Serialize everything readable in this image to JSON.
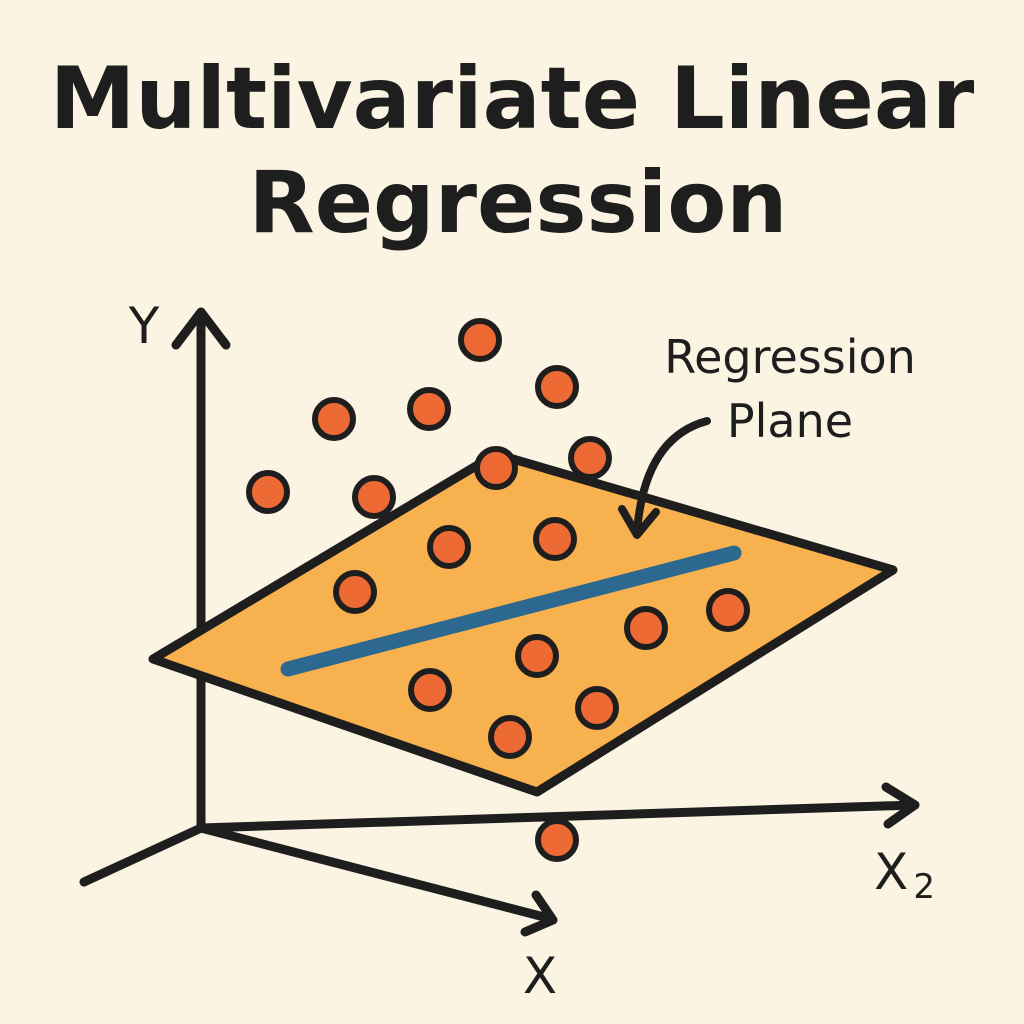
{
  "title": {
    "line1": "Multivariate Linear",
    "line2": "Regression"
  },
  "annotation": {
    "line1": "Regression",
    "line2": "Plane"
  },
  "axes": {
    "y": "Y",
    "x": "X",
    "x2_base": "X",
    "x2_sub": "2"
  },
  "colors": {
    "background": "#fcf4e2",
    "plane": "#f7b24f",
    "point": "#ee6a35",
    "line": "#2d6890",
    "ink": "#1e1e1e"
  }
}
